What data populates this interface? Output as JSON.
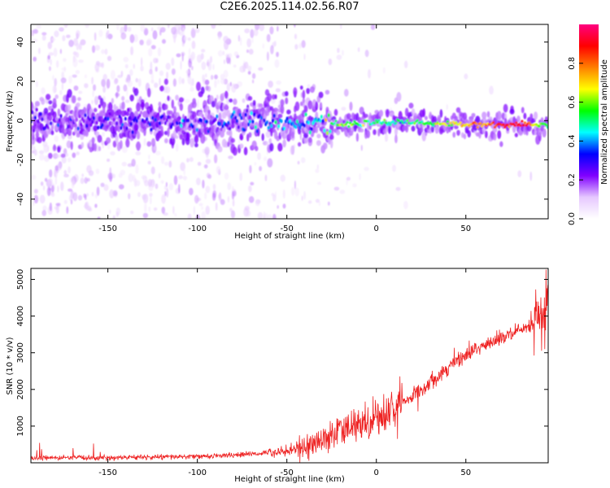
{
  "page": {
    "title": "C2E6.2025.114.02.56.R07"
  },
  "chart_data": [
    {
      "type": "heatmap",
      "panel": "spectrogram",
      "xlabel": "Height of straight line (km)",
      "ylabel": "Frequency (Hz)",
      "xlim": [
        -193,
        96
      ],
      "ylim": [
        -50,
        49
      ],
      "xticks": [
        -150,
        -100,
        -50,
        0,
        50
      ],
      "yticks": [
        -40,
        -20,
        0,
        20,
        40
      ],
      "colorbar": {
        "label": "Normalized spectral amplitude",
        "range": [
          0,
          1
        ],
        "ticks": [
          0.0,
          0.2,
          0.4,
          0.6,
          0.8
        ],
        "colors": [
          "#ffffff",
          "#e6c8ff",
          "#8000ff",
          "#0000ff",
          "#00ffff",
          "#00ff00",
          "#ffff00",
          "#ff8000",
          "#ff0000",
          "#ff0080"
        ]
      },
      "ridge": {
        "x": [
          -190,
          -150,
          -100,
          -60,
          -40,
          -20,
          0,
          20,
          50,
          80,
          95
        ],
        "frequency": [
          -1,
          -1,
          -1,
          0,
          0,
          -2,
          -1,
          -1,
          -2,
          -2,
          -2
        ],
        "amplitude": [
          0.25,
          0.25,
          0.28,
          0.35,
          0.4,
          0.55,
          0.5,
          0.5,
          0.72,
          0.9,
          0.5
        ]
      }
    },
    {
      "type": "line",
      "panel": "snr",
      "xlabel": "Height of straight line (km)",
      "ylabel": "SNR (10 * v/v)",
      "xlim": [
        -193,
        96
      ],
      "ylim": [
        0,
        5300
      ],
      "xticks": [
        -150,
        -100,
        -50,
        0,
        50
      ],
      "yticks": [
        1000,
        2000,
        3000,
        4000,
        5000
      ],
      "color": "#ee2222",
      "series": [
        {
          "x": [
            -193,
            -150,
            -100,
            -75,
            -60,
            -50,
            -40,
            -30,
            -25,
            -20,
            -10,
            0,
            10,
            20,
            30,
            40,
            50,
            60,
            70,
            80,
            90,
            93,
            95
          ],
          "values": [
            130,
            140,
            170,
            220,
            280,
            340,
            420,
            620,
            780,
            850,
            1050,
            1250,
            1450,
            1800,
            2200,
            2600,
            2950,
            3200,
            3400,
            3580,
            3800,
            4000,
            4100
          ]
        }
      ]
    }
  ]
}
